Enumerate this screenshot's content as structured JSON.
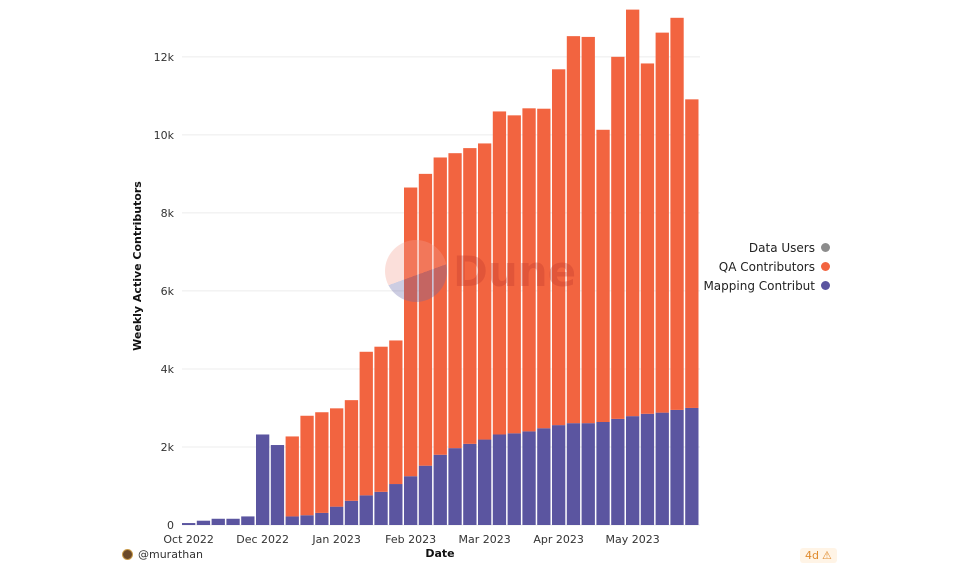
{
  "chart_data": {
    "type": "bar",
    "stacked": true,
    "xlabel": "Date",
    "ylabel": "Weekly Active Contributors",
    "ylim": [
      0,
      13200
    ],
    "yticks": [
      0,
      2000,
      4000,
      6000,
      8000,
      10000,
      12000
    ],
    "ytick_labels": [
      "0",
      "2k",
      "4k",
      "6k",
      "8k",
      "10k",
      "12k"
    ],
    "x_tick_labels": [
      {
        "label": "Oct 2022",
        "index": 0
      },
      {
        "label": "Dec 2022",
        "index": 5
      },
      {
        "label": "Jan 2023",
        "index": 10
      },
      {
        "label": "Feb 2023",
        "index": 15
      },
      {
        "label": "Mar 2023",
        "index": 20
      },
      {
        "label": "Apr 2023",
        "index": 25
      },
      {
        "label": "May 2023",
        "index": 30
      }
    ],
    "grid": true,
    "legend_position": "right",
    "series": [
      {
        "name": "Mapping Contribut",
        "color": "#5b55a0",
        "values": [
          50,
          110,
          160,
          160,
          220,
          2320,
          2050,
          220,
          250,
          310,
          470,
          620,
          760,
          850,
          1050,
          1250,
          1520,
          1800,
          1970,
          2080,
          2190,
          2320,
          2350,
          2400,
          2480,
          2560,
          2610,
          2610,
          2640,
          2720,
          2790,
          2850,
          2880,
          2950,
          3000
        ]
      },
      {
        "name": "QA Contributors",
        "color": "#f26440",
        "values": [
          0,
          0,
          0,
          0,
          0,
          0,
          0,
          2050,
          2550,
          2580,
          2520,
          2580,
          3680,
          3720,
          3680,
          7400,
          7480,
          7620,
          7560,
          7580,
          7590,
          8280,
          8150,
          8280,
          8190,
          9120,
          9920,
          9900,
          7490,
          9280,
          10420,
          8980,
          9740,
          10050,
          7910
        ]
      },
      {
        "name": "Data Users",
        "color": "#8c8c8c",
        "values": []
      }
    ]
  },
  "watermark": {
    "text": "Dune"
  },
  "footer": {
    "author": "@murathan",
    "age": "4d",
    "age_icon": "warning-icon"
  }
}
